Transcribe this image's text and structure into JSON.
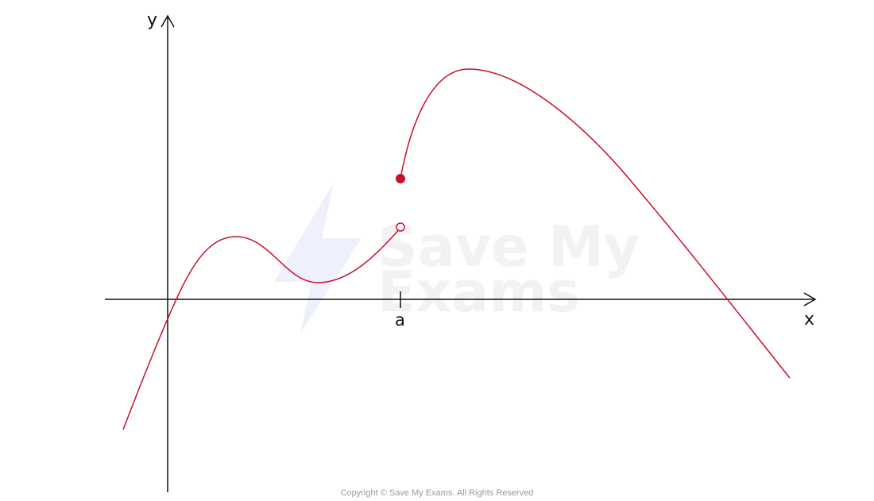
{
  "figure": {
    "axis_labels": {
      "x": "x",
      "y": "y"
    },
    "tick_labels": {
      "a": "a"
    },
    "watermark": {
      "line1": "Save My",
      "line2": "Exams"
    },
    "copyright": "Copyright © Save My Exams. All Rights Reserved",
    "colors": {
      "curve": "#c8102e",
      "axes": "#111111",
      "watermark_logo": "#eef0fb",
      "watermark_text": "#f2f2f2",
      "copyright": "#9a9a9a"
    },
    "discontinuity": {
      "at": "a",
      "left_limit_point": "open circle",
      "function_value_point": "filled circle"
    }
  }
}
